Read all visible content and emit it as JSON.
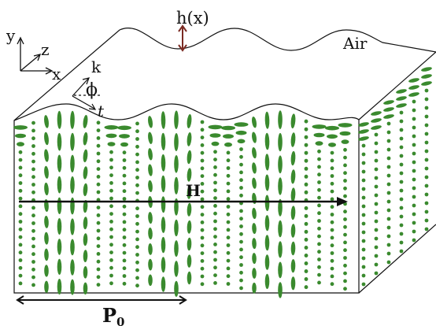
{
  "labels": {
    "axis_y": "y",
    "axis_z": "z",
    "axis_x": "x",
    "wave_vector": "k",
    "angle": "ϕ",
    "tangent": "t",
    "height": "h(x)",
    "medium": "Air",
    "field": "H",
    "period": "P",
    "period_sub": "0"
  },
  "colors": {
    "molecule": "#3a8a2e",
    "outline": "#111111",
    "height_arrow": "#7a2a22"
  }
}
